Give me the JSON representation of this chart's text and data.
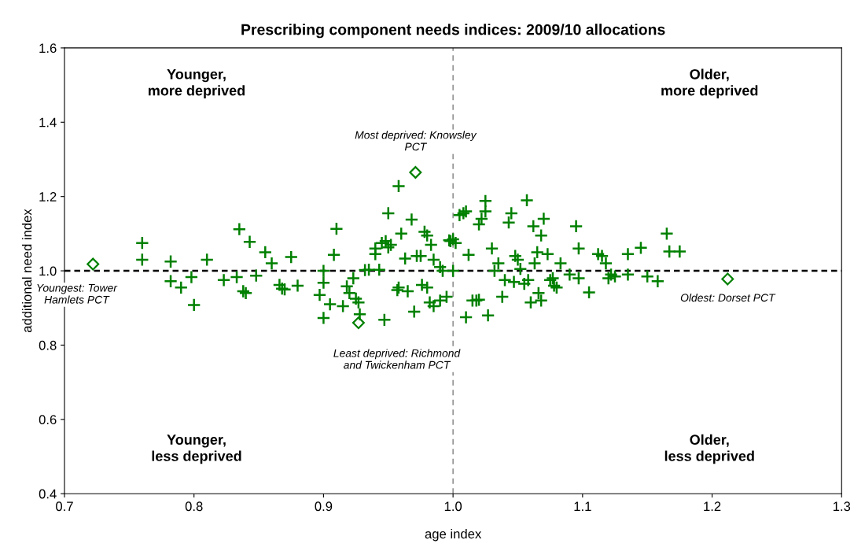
{
  "chart_data": {
    "type": "scatter",
    "title": "Prescribing component needs indices: 2009/10 allocations",
    "xlabel": "age index",
    "ylabel": "additional need index",
    "xlim": [
      0.7,
      1.3
    ],
    "ylim": [
      0.4,
      1.6
    ],
    "xticks": [
      {
        "value": 0.7,
        "label": "0.7"
      },
      {
        "value": 0.8,
        "label": "0.8"
      },
      {
        "value": 0.9,
        "label": "0.9"
      },
      {
        "value": 1.0,
        "label": "1.0"
      },
      {
        "value": 1.1,
        "label": "1.1"
      },
      {
        "value": 1.2,
        "label": "1.2"
      },
      {
        "value": 1.3,
        "label": "1.3"
      }
    ],
    "yticks": [
      {
        "value": 0.4,
        "label": "0.4"
      },
      {
        "value": 0.6,
        "label": "0.6"
      },
      {
        "value": 0.8,
        "label": "0.8"
      },
      {
        "value": 1.0,
        "label": "1.0"
      },
      {
        "value": 1.2,
        "label": "1.2"
      },
      {
        "value": 1.4,
        "label": "1.4"
      },
      {
        "value": 1.6,
        "label": "1.6"
      }
    ],
    "grid": false,
    "legend": false,
    "series": [
      {
        "color": "#008000",
        "marker": "cross",
        "x": [
          0.76,
          0.76,
          0.782,
          0.782,
          0.79,
          0.798,
          0.8,
          0.81,
          0.823,
          0.833,
          0.835,
          0.838,
          0.84,
          0.843,
          0.848,
          0.855,
          0.86,
          0.866,
          0.868,
          0.87,
          0.875,
          0.88,
          0.897,
          0.9,
          0.9,
          0.9,
          0.905,
          0.908,
          0.91,
          0.915,
          0.918,
          0.92,
          0.923,
          0.925,
          0.927,
          0.928,
          0.932,
          0.935,
          0.94,
          0.94,
          0.943,
          0.945,
          0.947,
          0.948,
          0.95,
          0.95,
          0.952,
          0.957,
          0.958,
          0.958,
          0.96,
          0.963,
          0.965,
          0.968,
          0.97,
          0.972,
          0.975,
          0.976,
          0.978,
          0.98,
          0.98,
          0.982,
          0.983,
          0.985,
          0.985,
          0.99,
          0.99,
          0.992,
          0.995,
          0.997,
          0.998,
          1.0,
          1.0,
          1.002,
          1.005,
          1.008,
          1.01,
          1.01,
          1.012,
          1.015,
          1.018,
          1.02,
          1.02,
          1.022,
          1.025,
          1.025,
          1.027,
          1.03,
          1.032,
          1.035,
          1.038,
          1.04,
          1.043,
          1.045,
          1.047,
          1.048,
          1.05,
          1.052,
          1.055,
          1.057,
          1.058,
          1.06,
          1.062,
          1.063,
          1.065,
          1.066,
          1.068,
          1.068,
          1.07,
          1.073,
          1.075,
          1.077,
          1.078,
          1.08,
          1.083,
          1.09,
          1.095,
          1.097,
          1.097,
          1.105,
          1.112,
          1.115,
          1.118,
          1.12,
          1.122,
          1.125,
          1.135,
          1.135,
          1.145,
          1.15,
          1.158,
          1.165,
          1.167,
          1.175
        ],
        "values": [
          1.075,
          1.03,
          1.025,
          0.972,
          0.955,
          0.983,
          0.908,
          1.03,
          0.975,
          0.983,
          1.112,
          0.945,
          0.94,
          1.078,
          0.987,
          1.05,
          1.02,
          0.962,
          0.952,
          0.95,
          1.037,
          0.96,
          0.935,
          0.873,
          1.0,
          0.968,
          0.91,
          1.043,
          1.113,
          0.905,
          0.958,
          0.94,
          0.98,
          0.925,
          0.915,
          0.883,
          1.002,
          1.003,
          1.045,
          1.06,
          1.003,
          1.075,
          0.868,
          1.08,
          1.155,
          1.063,
          1.07,
          0.948,
          0.955,
          1.228,
          1.1,
          1.033,
          0.945,
          1.138,
          0.89,
          1.04,
          1.04,
          0.962,
          1.105,
          1.095,
          0.955,
          0.915,
          1.07,
          0.905,
          1.03,
          0.92,
          1.01,
          1.0,
          0.93,
          1.082,
          1.08,
          1.085,
          1.0,
          1.075,
          1.15,
          1.155,
          1.16,
          0.875,
          1.043,
          0.92,
          0.92,
          0.922,
          1.125,
          1.14,
          1.188,
          1.16,
          0.88,
          1.06,
          1.0,
          1.02,
          0.93,
          0.975,
          1.13,
          1.155,
          0.97,
          1.04,
          1.03,
          1.005,
          0.965,
          1.19,
          0.975,
          0.915,
          1.12,
          1.02,
          1.05,
          0.94,
          0.92,
          1.095,
          1.14,
          1.045,
          0.975,
          0.98,
          0.96,
          0.955,
          1.02,
          0.99,
          1.12,
          1.06,
          0.98,
          0.942,
          1.045,
          1.04,
          1.02,
          0.98,
          0.99,
          0.985,
          1.045,
          0.99,
          1.062,
          0.985,
          0.972,
          1.1,
          1.052,
          1.052
        ]
      },
      {
        "color": "#008000",
        "marker": "diamond",
        "x": [
          0.722,
          0.971,
          0.927,
          1.212
        ],
        "values": [
          1.018,
          1.265,
          0.86,
          0.978
        ]
      }
    ],
    "ref_lines": [
      {
        "axis": "x",
        "value": 1.0,
        "color": "#808080",
        "line_style": "dashed"
      },
      {
        "axis": "y",
        "value": 1.0,
        "color": "#000000",
        "line_style": "dotted"
      }
    ],
    "annotations": [
      "Younger,\nmore deprived",
      "Older,\nmore deprived",
      "Younger,\nless deprived",
      "Older,\nless deprived",
      {
        "text": "Youngest: Tower\nHamlets PCT",
        "x": 0.722,
        "y": 1.018
      },
      {
        "text": "Most deprived: Knowsley\nPCT",
        "x": 0.971,
        "y": 1.265
      },
      {
        "text": "Least deprived: Richmond\nand Twickenham PCT",
        "x": 0.927,
        "y": 0.86
      },
      {
        "text": "Oldest: Dorset PCT",
        "x": 1.212,
        "y": 0.978
      }
    ]
  }
}
